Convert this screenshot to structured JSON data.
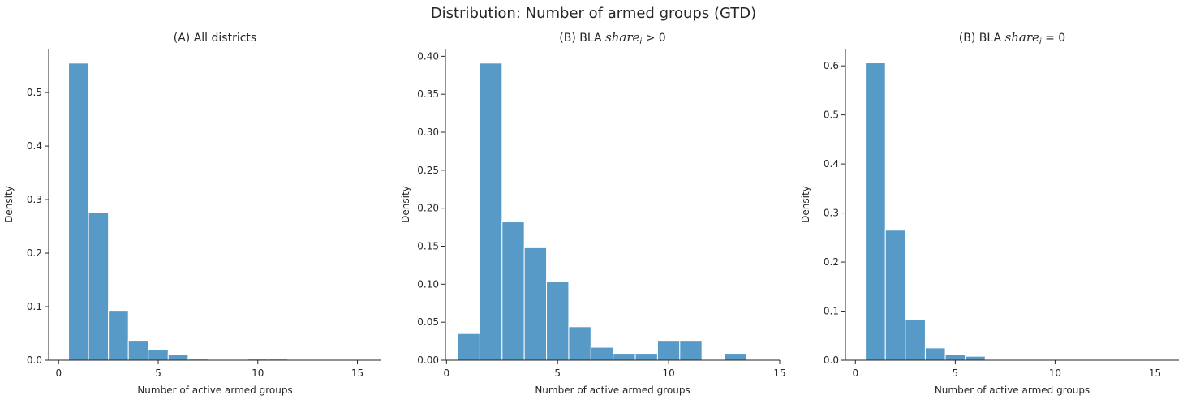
{
  "figure": {
    "title": "Distribution: Number of armed groups (GTD)"
  },
  "chart_data": [
    {
      "type": "bar",
      "title_prefix": "(A) All districts",
      "title_math": "",
      "title_suffix": "",
      "xlabel": "Number of active armed groups",
      "ylabel": "Density",
      "xlim": [
        -0.5,
        16.2
      ],
      "ylim": [
        0,
        0.582
      ],
      "xticks": [
        0,
        5,
        10,
        15
      ],
      "yticks": [
        0.0,
        0.1,
        0.2,
        0.3,
        0.4,
        0.5
      ],
      "ytick_labels": [
        "0.0",
        "0.1",
        "0.2",
        "0.3",
        "0.4",
        "0.5"
      ],
      "bins": [
        {
          "x0": 0.5,
          "x1": 1.5,
          "value": 0.555
        },
        {
          "x0": 1.5,
          "x1": 2.5,
          "value": 0.276
        },
        {
          "x0": 2.5,
          "x1": 3.5,
          "value": 0.093
        },
        {
          "x0": 3.5,
          "x1": 4.5,
          "value": 0.037
        },
        {
          "x0": 4.5,
          "x1": 5.5,
          "value": 0.019
        },
        {
          "x0": 5.5,
          "x1": 6.5,
          "value": 0.011
        },
        {
          "x0": 6.5,
          "x1": 7.5,
          "value": 0.002
        },
        {
          "x0": 9.5,
          "x1": 10.5,
          "value": 0.002
        },
        {
          "x0": 10.5,
          "x1": 11.5,
          "value": 0.002
        }
      ]
    },
    {
      "type": "bar",
      "title_prefix": "(B) BLA ",
      "title_math": "share",
      "title_sub": "i",
      "title_suffix": " > 0",
      "xlabel": "Number of active armed groups",
      "ylabel": "Density",
      "xlim": [
        -0.05,
        15
      ],
      "ylim": [
        0,
        0.41
      ],
      "xticks": [
        0,
        5,
        10,
        15
      ],
      "yticks": [
        0.0,
        0.05,
        0.1,
        0.15,
        0.2,
        0.25,
        0.3,
        0.35,
        0.4
      ],
      "ytick_labels": [
        "0.00",
        "0.05",
        "0.10",
        "0.15",
        "0.20",
        "0.25",
        "0.30",
        "0.35",
        "0.40"
      ],
      "bins": [
        {
          "x0": 0.5,
          "x1": 1.5,
          "value": 0.035
        },
        {
          "x0": 1.5,
          "x1": 2.5,
          "value": 0.391
        },
        {
          "x0": 2.5,
          "x1": 3.5,
          "value": 0.182
        },
        {
          "x0": 3.5,
          "x1": 4.5,
          "value": 0.148
        },
        {
          "x0": 4.5,
          "x1": 5.5,
          "value": 0.104
        },
        {
          "x0": 5.5,
          "x1": 6.5,
          "value": 0.044
        },
        {
          "x0": 6.5,
          "x1": 7.5,
          "value": 0.017
        },
        {
          "x0": 7.5,
          "x1": 8.5,
          "value": 0.009
        },
        {
          "x0": 8.5,
          "x1": 9.5,
          "value": 0.009
        },
        {
          "x0": 9.5,
          "x1": 10.5,
          "value": 0.026
        },
        {
          "x0": 10.5,
          "x1": 11.5,
          "value": 0.026
        },
        {
          "x0": 12.5,
          "x1": 13.5,
          "value": 0.009
        }
      ]
    },
    {
      "type": "bar",
      "title_prefix": "(B) BLA ",
      "title_math": "share",
      "title_sub": "i",
      "title_suffix": " = 0",
      "xlabel": "Number of active armed groups",
      "ylabel": "Density",
      "xlim": [
        -0.5,
        16.2
      ],
      "ylim": [
        0,
        0.635
      ],
      "xticks": [
        0,
        5,
        10,
        15
      ],
      "yticks": [
        0.0,
        0.1,
        0.2,
        0.3,
        0.4,
        0.5,
        0.6
      ],
      "ytick_labels": [
        "0.0",
        "0.1",
        "0.2",
        "0.3",
        "0.4",
        "0.5",
        "0.6"
      ],
      "bins": [
        {
          "x0": 0.5,
          "x1": 1.5,
          "value": 0.606
        },
        {
          "x0": 1.5,
          "x1": 2.5,
          "value": 0.265
        },
        {
          "x0": 2.5,
          "x1": 3.5,
          "value": 0.083
        },
        {
          "x0": 3.5,
          "x1": 4.5,
          "value": 0.025
        },
        {
          "x0": 4.5,
          "x1": 5.5,
          "value": 0.011
        },
        {
          "x0": 5.5,
          "x1": 6.5,
          "value": 0.008
        }
      ]
    }
  ]
}
